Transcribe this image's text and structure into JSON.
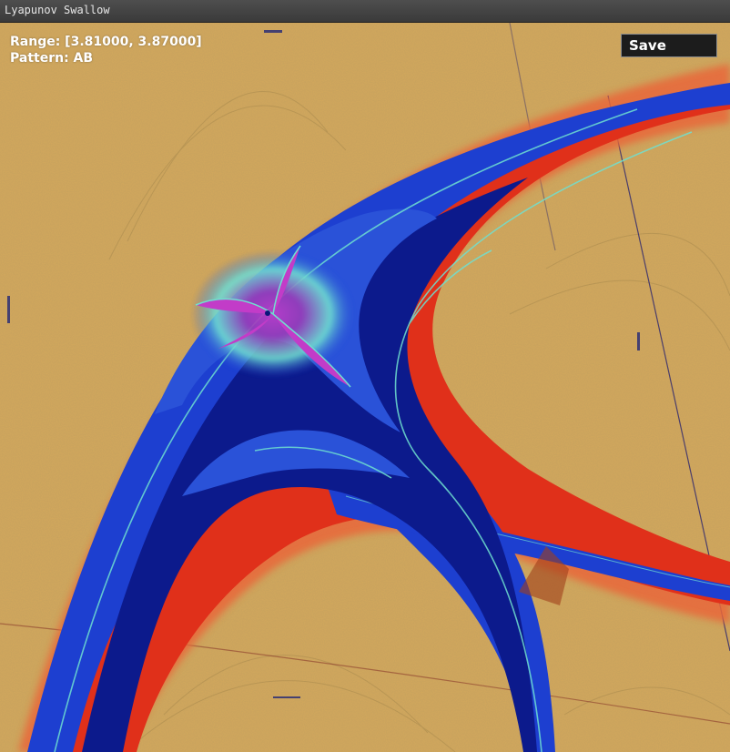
{
  "window": {
    "title": "Lyapunov Swallow"
  },
  "overlay": {
    "range_text": "Range: [3.81000, 3.87000]",
    "pattern_text": "Pattern: AB"
  },
  "toolbar": {
    "save_label": "Save"
  },
  "colors": {
    "background_sand": "#d4a85c",
    "stable_blue": "#1d3fd0",
    "deep_navy": "#0a157a",
    "edge_red": "#e0301a",
    "halo_orange": "#e8683a",
    "cyan_highlight": "#6fe0d0",
    "magenta_core": "#b02cb8"
  },
  "icons": {
    "titlebar": "none"
  }
}
